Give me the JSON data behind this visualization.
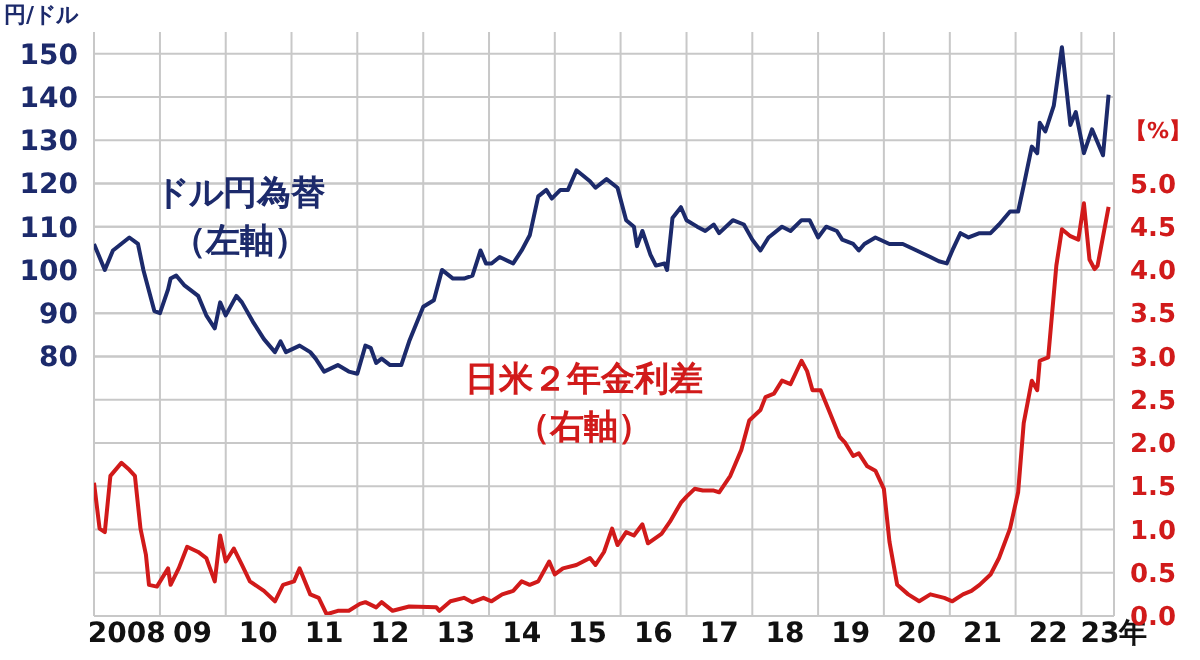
{
  "chart_data": {
    "type": "line",
    "ylabel": "円/ドル",
    "y2label": "【%】",
    "xlim": [
      "2008-01-01",
      "2023-07-01"
    ],
    "xticks": [
      {
        "value": "2008-01-01",
        "label": null
      },
      {
        "value": "2008-07-01",
        "label": "2008"
      },
      {
        "value": "2009-01-01",
        "label": null
      },
      {
        "value": "2009-07-01",
        "label": "09"
      },
      {
        "value": "2010-01-01",
        "label": null
      },
      {
        "value": "2010-07-01",
        "label": "10"
      },
      {
        "value": "2011-01-01",
        "label": null
      },
      {
        "value": "2011-07-01",
        "label": "11"
      },
      {
        "value": "2012-01-01",
        "label": null
      },
      {
        "value": "2012-07-01",
        "label": "12"
      },
      {
        "value": "2013-01-01",
        "label": null
      },
      {
        "value": "2013-07-01",
        "label": "13"
      },
      {
        "value": "2014-01-01",
        "label": null
      },
      {
        "value": "2014-07-01",
        "label": "14"
      },
      {
        "value": "2015-01-01",
        "label": null
      },
      {
        "value": "2015-07-01",
        "label": "15"
      },
      {
        "value": "2016-01-01",
        "label": null
      },
      {
        "value": "2016-07-01",
        "label": "16"
      },
      {
        "value": "2017-01-01",
        "label": null
      },
      {
        "value": "2017-07-01",
        "label": "17"
      },
      {
        "value": "2018-01-01",
        "label": null
      },
      {
        "value": "2018-07-01",
        "label": "18"
      },
      {
        "value": "2019-01-01",
        "label": null
      },
      {
        "value": "2019-07-01",
        "label": "19"
      },
      {
        "value": "2020-01-01",
        "label": null
      },
      {
        "value": "2020-07-01",
        "label": "20"
      },
      {
        "value": "2021-01-01",
        "label": null
      },
      {
        "value": "2021-07-01",
        "label": "21"
      },
      {
        "value": "2022-01-01",
        "label": null
      },
      {
        "value": "2022-07-01",
        "label": "22"
      },
      {
        "value": "2023-01-01",
        "label": null
      },
      {
        "value": "2023-07-01",
        "label": "23年"
      }
    ],
    "ylim": [
      20,
      155
    ],
    "yticks": [
      80,
      90,
      100,
      110,
      120,
      130,
      140,
      150
    ],
    "y2lim": [
      0,
      6.75
    ],
    "y2ticks": [
      {
        "value": 0,
        "label": "0.0"
      },
      0.5,
      {
        "value": 1,
        "label": "1.0"
      },
      1.5,
      {
        "value": 2,
        "label": "2.0"
      },
      2.5,
      {
        "value": 3,
        "label": "3.0"
      },
      3.5,
      {
        "value": 4,
        "label": "4.0"
      },
      4.5,
      {
        "value": 5,
        "label": "5.0"
      }
    ],
    "grid": true,
    "marker": "none",
    "line_style": "solid",
    "series": [
      {
        "name": "ドル円為替（左軸）",
        "color": "#1c2a6b",
        "x": [
          "2008-01-01",
          "2008-03-01",
          "2008-04-15",
          "2008-07-15",
          "2008-09-01",
          "2008-10-01",
          "2008-12-01",
          "2009-01-01",
          "2009-02-15",
          "2009-03-01",
          "2009-04-01",
          "2009-05-15",
          "2009-06-15",
          "2009-08-01",
          "2009-09-15",
          "2009-11-01",
          "2009-12-01",
          "2010-01-01",
          "2010-03-01",
          "2010-04-01",
          "2010-06-01",
          "2010-08-01",
          "2010-10-01",
          "2010-11-01",
          "2010-12-01",
          "2011-02-15",
          "2011-04-15",
          "2011-05-15",
          "2011-07-01",
          "2011-09-15",
          "2011-11-15",
          "2012-01-01",
          "2012-02-15",
          "2012-03-15",
          "2012-04-15",
          "2012-05-15",
          "2012-07-01",
          "2012-09-01",
          "2012-10-15",
          "2013-01-01",
          "2013-03-01",
          "2013-04-15",
          "2013-06-15",
          "2013-08-15",
          "2013-10-01",
          "2013-11-15",
          "2013-12-15",
          "2014-01-15",
          "2014-03-01",
          "2014-05-15",
          "2014-07-01",
          "2014-08-15",
          "2014-10-01",
          "2014-11-15",
          "2014-12-15",
          "2015-02-01",
          "2015-03-15",
          "2015-05-01",
          "2015-06-01",
          "2015-07-15",
          "2015-08-15",
          "2015-10-15",
          "2015-12-15",
          "2016-02-01",
          "2016-03-15",
          "2016-04-01",
          "2016-05-01",
          "2016-06-15",
          "2016-07-15",
          "2016-09-01",
          "2016-09-15",
          "2016-10-15",
          "2016-12-01",
          "2017-01-01",
          "2017-03-01",
          "2017-04-15",
          "2017-06-01",
          "2017-07-01",
          "2017-09-15",
          "2017-11-15",
          "2018-01-01",
          "2018-02-15",
          "2018-04-01",
          "2018-06-15",
          "2018-08-01",
          "2018-10-01",
          "2018-11-15",
          "2019-01-01",
          "2019-02-15",
          "2019-04-15",
          "2019-05-15",
          "2019-07-15",
          "2019-08-15",
          "2019-09-15",
          "2019-11-15",
          "2020-02-01",
          "2020-04-15",
          "2020-07-01",
          "2020-09-15",
          "2020-11-01",
          "2020-12-15",
          "2021-01-15",
          "2021-03-01",
          "2021-04-15",
          "2021-06-15",
          "2021-08-15",
          "2021-10-01",
          "2021-12-01",
          "2022-01-15",
          "2022-02-15",
          "2022-04-01",
          "2022-05-01",
          "2022-05-15",
          "2022-06-15",
          "2022-08-01",
          "2022-09-15",
          "2022-11-01",
          "2022-12-01",
          "2023-01-15",
          "2023-03-01",
          "2023-05-01",
          "2023-06-01"
        ],
        "values": [
          106,
          100,
          104.5,
          107.5,
          106,
          100,
          90.5,
          90,
          95.5,
          98,
          98.7,
          96.5,
          95.5,
          94,
          89.5,
          86.5,
          92.5,
          89.5,
          94,
          92.5,
          88,
          84,
          81,
          83.5,
          81,
          82.5,
          81,
          79.5,
          76.5,
          78,
          76.5,
          76,
          82.5,
          82,
          78.5,
          79.5,
          78,
          78,
          83.5,
          91.5,
          93,
          100,
          98,
          98,
          98.7,
          104.5,
          101.5,
          101.5,
          103,
          101.5,
          104.5,
          108,
          117,
          118.5,
          116.5,
          118.5,
          118.5,
          123,
          122,
          120.5,
          119,
          121,
          119,
          111.5,
          110,
          105.5,
          109,
          103.5,
          101,
          101.5,
          100,
          112,
          114.5,
          111.5,
          110,
          109,
          110.5,
          108.5,
          111.5,
          110.5,
          107,
          104.5,
          107.5,
          110,
          109,
          111.5,
          111.5,
          107.5,
          110,
          109,
          107,
          106,
          104.5,
          106,
          107.5,
          106,
          106,
          104.5,
          103,
          102,
          101.5,
          104.5,
          108.5,
          107.5,
          108.5,
          108.5,
          110.5,
          113.5,
          113.5,
          119.5,
          128.5,
          127,
          134,
          132,
          138,
          151.5,
          133.5,
          136.5,
          127,
          132.5,
          126.5,
          140.5
        ]
      },
      {
        "name": "日米２年金利差（右軸）",
        "color": "#d11a1a",
        "axis": "y2",
        "x": [
          "2008-01-01",
          "2008-02-01",
          "2008-03-01",
          "2008-04-01",
          "2008-06-01",
          "2008-07-15",
          "2008-08-15",
          "2008-09-15",
          "2008-10-15",
          "2008-11-01",
          "2008-12-15",
          "2009-02-15",
          "2009-03-01",
          "2009-04-15",
          "2009-06-01",
          "2009-08-01",
          "2009-09-15",
          "2009-11-01",
          "2009-12-01",
          "2010-01-01",
          "2010-02-15",
          "2010-04-01",
          "2010-05-15",
          "2010-08-01",
          "2010-10-01",
          "2010-11-15",
          "2011-01-15",
          "2011-02-15",
          "2011-04-15",
          "2011-06-01",
          "2011-07-15",
          "2011-09-15",
          "2011-11-15",
          "2012-01-15",
          "2012-02-15",
          "2012-04-15",
          "2012-05-15",
          "2012-07-15",
          "2012-10-15",
          "2013-03-15",
          "2013-04-01",
          "2013-06-01",
          "2013-08-15",
          "2013-10-01",
          "2013-12-01",
          "2014-01-15",
          "2014-03-15",
          "2014-05-15",
          "2014-07-01",
          "2014-08-15",
          "2014-10-01",
          "2014-12-01",
          "2015-01-01",
          "2015-02-15",
          "2015-05-01",
          "2015-07-15",
          "2015-08-15",
          "2015-10-01",
          "2015-11-15",
          "2015-12-15",
          "2016-02-01",
          "2016-03-15",
          "2016-05-01",
          "2016-06-01",
          "2016-08-15",
          "2016-10-01",
          "2016-12-01",
          "2017-01-01",
          "2017-02-15",
          "2017-04-01",
          "2017-06-01",
          "2017-07-01",
          "2017-09-01",
          "2017-11-01",
          "2017-12-15",
          "2018-02-15",
          "2018-03-15",
          "2018-05-01",
          "2018-06-15",
          "2018-08-01",
          "2018-10-01",
          "2018-11-01",
          "2018-12-01",
          "2019-01-15",
          "2019-03-01",
          "2019-05-01",
          "2019-06-01",
          "2019-07-15",
          "2019-08-15",
          "2019-10-01",
          "2019-11-15",
          "2020-01-01",
          "2020-02-01",
          "2020-03-15",
          "2020-05-15",
          "2020-07-15",
          "2020-09-15",
          "2020-12-01",
          "2021-01-15",
          "2021-03-15",
          "2021-05-01",
          "2021-06-15",
          "2021-08-15",
          "2021-10-01",
          "2021-12-01",
          "2022-01-15",
          "2022-02-15",
          "2022-04-01",
          "2022-05-01",
          "2022-05-15",
          "2022-07-01",
          "2022-08-15",
          "2022-09-15",
          "2022-11-01",
          "2022-12-15",
          "2023-01-15",
          "2023-02-15",
          "2023-03-15",
          "2023-04-01",
          "2023-06-01"
        ],
        "values": [
          1.54,
          1.01,
          0.97,
          1.62,
          1.77,
          1.69,
          1.62,
          1.01,
          0.71,
          0.36,
          0.34,
          0.55,
          0.36,
          0.55,
          0.8,
          0.74,
          0.67,
          0.4,
          0.93,
          0.63,
          0.78,
          0.59,
          0.4,
          0.29,
          0.17,
          0.36,
          0.4,
          0.55,
          0.25,
          0.21,
          0.02,
          0.06,
          0.06,
          0.14,
          0.16,
          0.1,
          0.16,
          0.06,
          0.11,
          0.1,
          0.06,
          0.17,
          0.21,
          0.16,
          0.21,
          0.17,
          0.25,
          0.29,
          0.4,
          0.36,
          0.4,
          0.63,
          0.48,
          0.55,
          0.59,
          0.67,
          0.59,
          0.74,
          1.01,
          0.82,
          0.97,
          0.93,
          1.06,
          0.84,
          0.95,
          1.09,
          1.31,
          1.38,
          1.47,
          1.45,
          1.45,
          1.43,
          1.62,
          1.92,
          2.26,
          2.38,
          2.53,
          2.57,
          2.72,
          2.68,
          2.95,
          2.83,
          2.61,
          2.61,
          2.38,
          2.07,
          2.0,
          1.85,
          1.88,
          1.73,
          1.68,
          1.47,
          0.86,
          0.36,
          0.25,
          0.17,
          0.25,
          0.21,
          0.17,
          0.25,
          0.29,
          0.36,
          0.48,
          0.67,
          1.01,
          1.43,
          2.23,
          2.72,
          2.61,
          2.95,
          2.99,
          4.05,
          4.47,
          4.39,
          4.35,
          4.77,
          4.12,
          4.01,
          4.05,
          4.73
        ]
      }
    ]
  }
}
